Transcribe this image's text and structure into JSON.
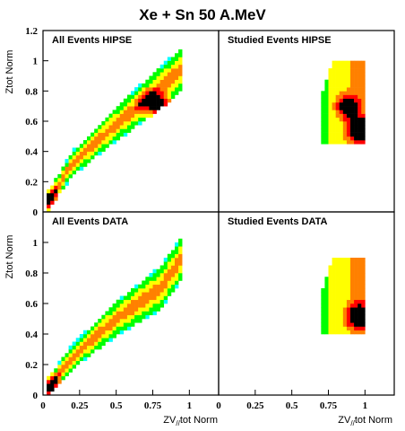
{
  "title": "Xe + Sn 50 A.MeV",
  "x_axis_label": "ZV",
  "x_axis_label_sub": "//",
  "x_axis_label_rest": "tot Norm",
  "y_axis_label": "Ztot Norm",
  "chart_data": [
    {
      "type": "heatmap",
      "title": "All Events HIPSE",
      "xlabel": "",
      "ylabel": "Ztot Norm",
      "xlim": [
        0,
        1.2
      ],
      "ylim": [
        0,
        1.2
      ],
      "y_ticks": [
        "0",
        "0.2",
        "0.4",
        "0.6",
        "0.8",
        "1",
        "1.2"
      ],
      "y_tick_values": [
        0,
        0.2,
        0.4,
        0.6,
        0.8,
        1.0,
        1.2
      ],
      "colors": [
        "#ff00ff",
        "#0000ff",
        "#00ffff",
        "#00ff00",
        "#ffff00",
        "#ff8000",
        "#ff0000",
        "#000000"
      ],
      "region": {
        "description": "diagonal band from low to high values",
        "centerline": [
          [
            0.02,
            0.05
          ],
          [
            0.2,
            0.32
          ],
          [
            0.5,
            0.58
          ],
          [
            0.8,
            0.82
          ],
          [
            0.95,
            0.95
          ]
        ],
        "hotspots": [
          [
            0.05,
            0.08
          ],
          [
            0.75,
            0.72
          ],
          [
            0.85,
            0.68
          ]
        ]
      }
    },
    {
      "type": "heatmap",
      "title": "Studied Events HIPSE",
      "xlabel": "",
      "ylabel": "",
      "xlim": [
        0,
        1.2
      ],
      "ylim": [
        0,
        1.2
      ],
      "region": {
        "description": "compact triangular region",
        "x_range": [
          0.7,
          1.0
        ],
        "y_range": [
          0.45,
          1.0
        ],
        "hotspots": [
          [
            0.88,
            0.7
          ],
          [
            0.95,
            0.55
          ]
        ]
      }
    },
    {
      "type": "heatmap",
      "title": "All Events DATA",
      "xlabel": "ZV//tot Norm",
      "ylabel": "Ztot Norm",
      "xlim": [
        0,
        1.2
      ],
      "ylim": [
        0,
        1.2
      ],
      "x_ticks": [
        "0",
        "0.25",
        "0.5",
        "0.75",
        "1"
      ],
      "x_tick_values": [
        0,
        0.25,
        0.5,
        0.75,
        1.0
      ],
      "y_ticks": [
        "0",
        "0.2",
        "0.4",
        "0.6",
        "0.8",
        "1"
      ],
      "y_tick_values": [
        0,
        0.2,
        0.4,
        0.6,
        0.8,
        1.0
      ],
      "region": {
        "description": "diagonal band with hotspot near upper end",
        "centerline": [
          [
            0.02,
            0.03
          ],
          [
            0.2,
            0.25
          ],
          [
            0.5,
            0.5
          ],
          [
            0.8,
            0.7
          ],
          [
            0.95,
            0.9
          ]
        ],
        "hotspots": [
          [
            0.05,
            0.05
          ],
          [
            0.95,
            0.53
          ]
        ]
      }
    },
    {
      "type": "heatmap",
      "title": "Studied Events DATA",
      "xlabel": "ZV//tot Norm",
      "ylabel": "",
      "xlim": [
        0,
        1.2
      ],
      "ylim": [
        0,
        1.2
      ],
      "x_ticks": [
        "0",
        "0.25",
        "0.5",
        "0.75",
        "1"
      ],
      "x_tick_values": [
        0,
        0.25,
        0.5,
        0.75,
        1.0
      ],
      "region": {
        "description": "compact triangular region",
        "x_range": [
          0.7,
          1.0
        ],
        "y_range": [
          0.4,
          0.9
        ],
        "hotspots": [
          [
            0.95,
            0.52
          ]
        ]
      }
    }
  ]
}
